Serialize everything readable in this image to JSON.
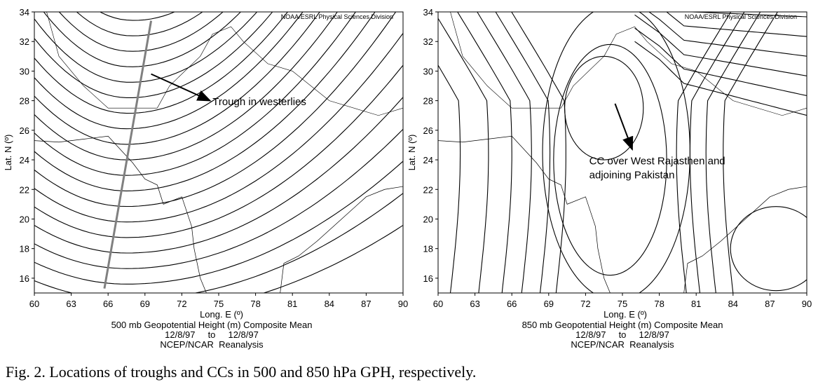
{
  "caption": "Fig. 2. Locations of troughs and CCs in 500 and 850 hPa GPH, respectively.",
  "chart_data": [
    {
      "type": "contour",
      "credit": "NOAA/ESRL Physical Sciences Division",
      "xlabel": "Long. E (º)",
      "ylabel": "Lat. N (º)",
      "xlim": [
        60,
        90
      ],
      "ylim": [
        15,
        34
      ],
      "xticks": [
        "60",
        "63",
        "66",
        "69",
        "72",
        "75",
        "78",
        "81",
        "84",
        "87",
        "90"
      ],
      "yticks": [
        "16",
        "18",
        "20",
        "22",
        "24",
        "26",
        "28",
        "30",
        "32",
        "34"
      ],
      "title_lines": [
        "500 mb Geopotential Height (m) Composite Mean",
        "12/8/97     to     12/8/97",
        "NCEP/NCAR  Reanalysis"
      ],
      "annotation": "Trough in westerlies",
      "trough_axis": {
        "from": [
          65.7,
          15.3
        ],
        "to": [
          69.5,
          33.4
        ],
        "color": "#808080"
      },
      "arrow": {
        "from": [
          69.5,
          29.8
        ],
        "to": [
          74.3,
          28.0
        ]
      }
    },
    {
      "type": "contour",
      "credit": "NOAA/ESRL Physical Sciences Division",
      "xlabel": "Long. E (º)",
      "ylabel": "Lat. N (º)",
      "xlim": [
        60,
        90
      ],
      "ylim": [
        15,
        34
      ],
      "xticks": [
        "60",
        "63",
        "66",
        "69",
        "72",
        "75",
        "78",
        "81",
        "84",
        "87",
        "90"
      ],
      "yticks": [
        "16",
        "18",
        "20",
        "22",
        "24",
        "26",
        "28",
        "30",
        "32",
        "34"
      ],
      "title_lines": [
        "850 mb Geopotential Height (m) Composite Mean",
        "12/8/97     to     12/8/97",
        "NCEP/NCAR  Reanalysis"
      ],
      "annotation_lines": [
        "CC over West Rajasthen and",
        "adjoining Pakistan"
      ],
      "arrow": {
        "from": [
          74.4,
          27.8
        ],
        "to": [
          75.8,
          24.7
        ]
      }
    }
  ]
}
